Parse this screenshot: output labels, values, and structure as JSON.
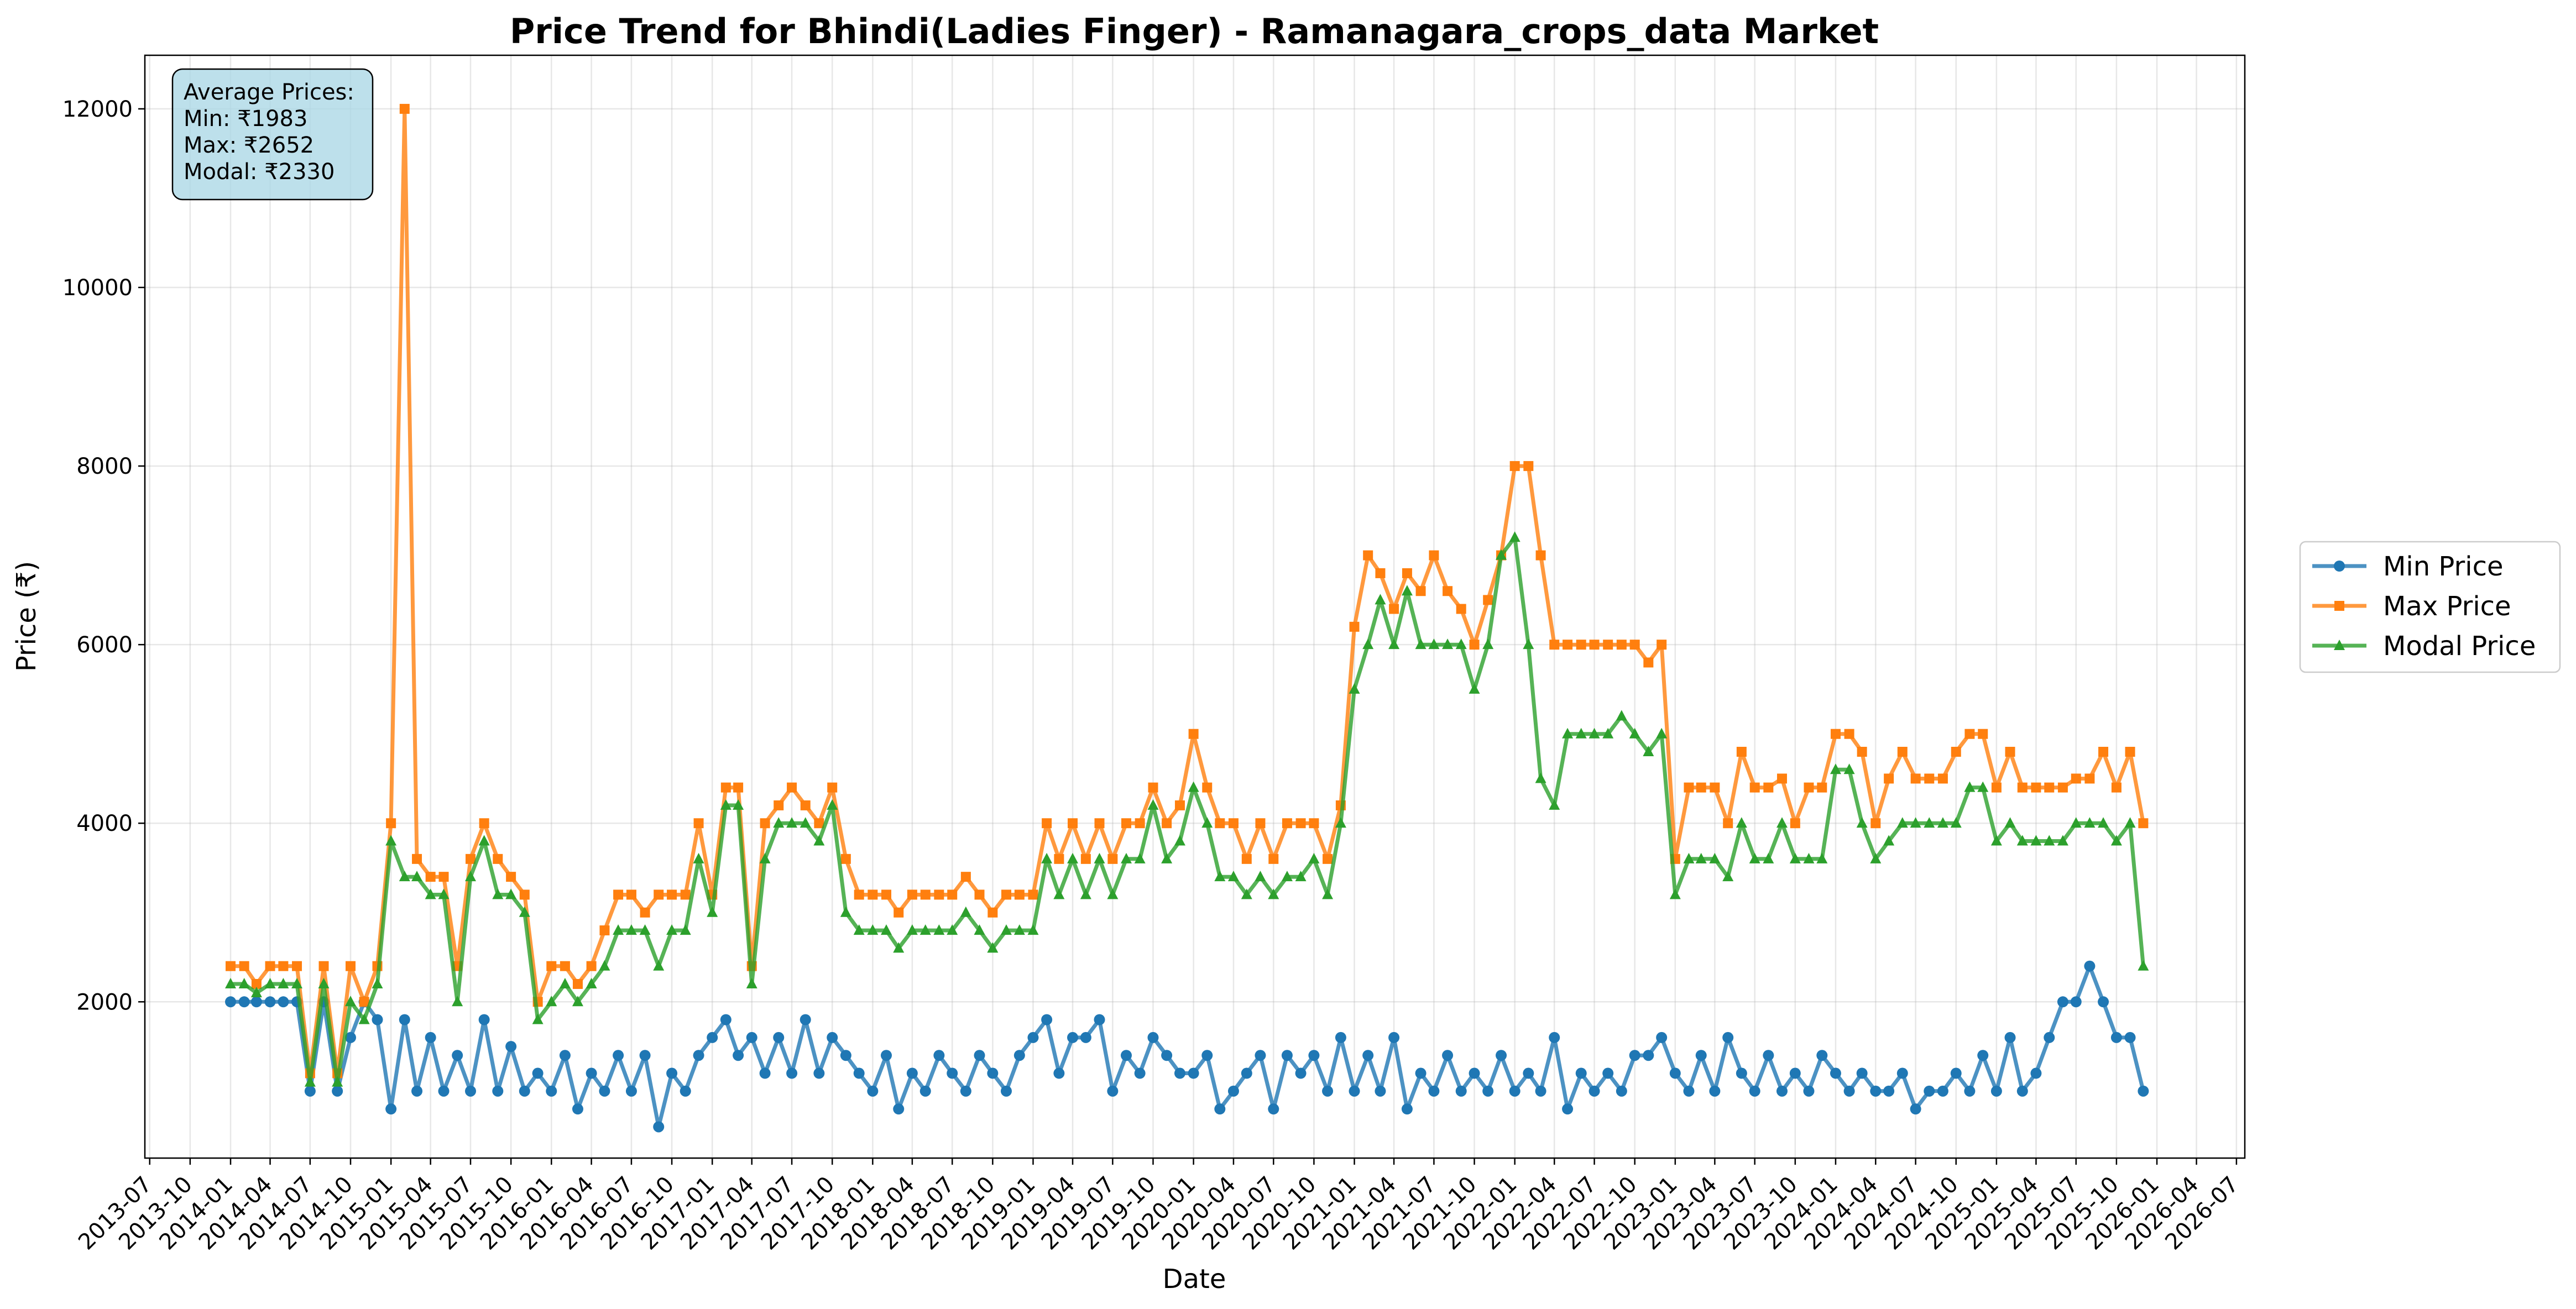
{
  "chart_data": {
    "type": "line",
    "title": "Price Trend for Bhindi(Ladies Finger) - Ramanagara_crops_data Market",
    "xlabel": "Date",
    "ylabel": "Price (₹)",
    "xlim": [
      "2013-06-20",
      "2026-07-20"
    ],
    "ylim": [
      250,
      12600
    ],
    "grid": true,
    "legend_position": "right-outside",
    "x_ticks": [
      "2013-07",
      "2013-10",
      "2014-01",
      "2014-04",
      "2014-07",
      "2014-10",
      "2015-01",
      "2015-04",
      "2015-07",
      "2015-10",
      "2016-01",
      "2016-04",
      "2016-07",
      "2016-10",
      "2017-01",
      "2017-04",
      "2017-07",
      "2017-10",
      "2018-01",
      "2018-04",
      "2018-07",
      "2018-10",
      "2019-01",
      "2019-04",
      "2019-07",
      "2019-10",
      "2020-01",
      "2020-04",
      "2020-07",
      "2020-10",
      "2021-01",
      "2021-04",
      "2021-07",
      "2021-10",
      "2022-01",
      "2022-04",
      "2022-07",
      "2022-10",
      "2023-01",
      "2023-04",
      "2023-07",
      "2023-10",
      "2024-01",
      "2024-04",
      "2024-07",
      "2024-10",
      "2025-01",
      "2025-04",
      "2025-07",
      "2025-10",
      "2026-01",
      "2026-04",
      "2026-07"
    ],
    "y_ticks": [
      2000,
      4000,
      6000,
      8000,
      10000,
      12000
    ],
    "stats_box": {
      "heading": "Average Prices:",
      "lines": [
        "Min: ₹1983",
        "Max: ₹2652",
        "Modal: ₹2330"
      ]
    },
    "series": [
      {
        "name": "Min Price",
        "color": "#1f77b4",
        "marker": "circle",
        "x": [
          "2014-01-01",
          "2014-02-01",
          "2014-03-01",
          "2014-04-01",
          "2014-05-01",
          "2014-06-01",
          "2014-07-01",
          "2014-08-01",
          "2014-09-01",
          "2014-10-01",
          "2014-11-01",
          "2014-12-01",
          "2015-01-01",
          "2015-02-01",
          "2015-03-01",
          "2015-04-01",
          "2015-05-01",
          "2015-06-01",
          "2015-07-01",
          "2015-08-01",
          "2015-09-01",
          "2015-10-01",
          "2015-11-01",
          "2015-12-01",
          "2016-01-01",
          "2016-02-01",
          "2016-03-01",
          "2016-04-01",
          "2016-05-01",
          "2016-06-01",
          "2016-07-01",
          "2016-08-01",
          "2016-09-01",
          "2016-10-01",
          "2016-11-01",
          "2016-12-01",
          "2017-01-01",
          "2017-02-01",
          "2017-03-01",
          "2017-04-01",
          "2017-05-01",
          "2017-06-01",
          "2017-07-01",
          "2017-08-01",
          "2017-09-01",
          "2017-10-01",
          "2017-11-01",
          "2017-12-01",
          "2018-01-01",
          "2018-02-01",
          "2018-03-01",
          "2018-04-01",
          "2018-05-01",
          "2018-06-01",
          "2018-07-01",
          "2018-08-01",
          "2018-09-01",
          "2018-10-01",
          "2018-11-01",
          "2018-12-01",
          "2019-01-01",
          "2019-02-01",
          "2019-03-01",
          "2019-04-01",
          "2019-05-01",
          "2019-06-01",
          "2019-07-01",
          "2019-08-01",
          "2019-09-01",
          "2019-10-01",
          "2019-11-01",
          "2019-12-01",
          "2020-01-01",
          "2020-02-01",
          "2020-03-01",
          "2020-04-01",
          "2020-05-01",
          "2020-06-01",
          "2020-07-01",
          "2020-08-01",
          "2020-09-01",
          "2020-10-01",
          "2020-11-01",
          "2020-12-01",
          "2021-01-01",
          "2021-02-01",
          "2021-03-01",
          "2021-04-01",
          "2021-05-01",
          "2021-06-01",
          "2021-07-01",
          "2021-08-01",
          "2021-09-01",
          "2021-10-01",
          "2021-11-01",
          "2021-12-01",
          "2022-01-01",
          "2022-02-01",
          "2022-03-01",
          "2022-04-01",
          "2022-05-01",
          "2022-06-01",
          "2022-07-01",
          "2022-08-01",
          "2022-09-01",
          "2022-10-01",
          "2022-11-01",
          "2022-12-01",
          "2023-01-01",
          "2023-02-01",
          "2023-03-01",
          "2023-04-01",
          "2023-05-01",
          "2023-06-01",
          "2023-07-01",
          "2023-08-01",
          "2023-09-01",
          "2023-10-01",
          "2023-11-01",
          "2023-12-01",
          "2024-01-01",
          "2024-02-01",
          "2024-03-01",
          "2024-04-01",
          "2024-05-01",
          "2024-06-01",
          "2024-07-01",
          "2024-08-01",
          "2024-09-01",
          "2024-10-01",
          "2024-11-01",
          "2024-12-01",
          "2025-01-01",
          "2025-02-01",
          "2025-03-01",
          "2025-04-01",
          "2025-05-01",
          "2025-06-01",
          "2025-07-01",
          "2025-08-01",
          "2025-09-01",
          "2025-10-01",
          "2025-11-01",
          "2025-12-01"
        ],
        "values": [
          2000,
          2000,
          2000,
          2000,
          2000,
          2000,
          1000,
          2000,
          1000,
          1600,
          2000,
          1800,
          800,
          1800,
          1000,
          1600,
          1000,
          1400,
          1000,
          1800,
          1000,
          1500,
          1000,
          1200,
          1000,
          1400,
          800,
          1200,
          1000,
          1400,
          1000,
          1400,
          600,
          1200,
          1000,
          1400,
          1600,
          1800,
          1400,
          1600,
          1200,
          1600,
          1200,
          1800,
          1200,
          1600,
          1400,
          1200,
          1000,
          1400,
          800,
          1200,
          1000,
          1400,
          1200,
          1000,
          1400,
          1200,
          1000,
          1400,
          1600,
          1800,
          1200,
          1600,
          1600,
          1800,
          1000,
          1400,
          1200,
          1600,
          1400,
          1200,
          1200,
          1400,
          800,
          1000,
          1200,
          1400,
          800,
          1400,
          1200,
          1400,
          1000,
          1600,
          1000,
          1400,
          1000,
          1600,
          800,
          1200,
          1000,
          1400,
          1000,
          1200,
          1000,
          1400,
          1000,
          1200,
          1000,
          1600,
          800,
          1200,
          1000,
          1200,
          1000,
          1400,
          1400,
          1600,
          1200,
          1000,
          1400,
          1000,
          1600,
          1200,
          1000,
          1400,
          1000,
          1200,
          1000,
          1400,
          1200,
          1000,
          1200,
          1000,
          1000,
          1200,
          800,
          1000,
          1000,
          1200,
          1000,
          1400,
          1000,
          1600,
          1000,
          1200,
          1600,
          2000,
          2000,
          2400,
          2000,
          1600,
          1600,
          1000
        ]
      },
      {
        "name": "Max Price",
        "color": "#ff7f0e",
        "marker": "square",
        "x": [
          "2014-01-01",
          "2014-02-01",
          "2014-03-01",
          "2014-04-01",
          "2014-05-01",
          "2014-06-01",
          "2014-07-01",
          "2014-08-01",
          "2014-09-01",
          "2014-10-01",
          "2014-11-01",
          "2014-12-01",
          "2015-01-01",
          "2015-02-01",
          "2015-03-01",
          "2015-04-01",
          "2015-05-01",
          "2015-06-01",
          "2015-07-01",
          "2015-08-01",
          "2015-09-01",
          "2015-10-01",
          "2015-11-01",
          "2015-12-01",
          "2016-01-01",
          "2016-02-01",
          "2016-03-01",
          "2016-04-01",
          "2016-05-01",
          "2016-06-01",
          "2016-07-01",
          "2016-08-01",
          "2016-09-01",
          "2016-10-01",
          "2016-11-01",
          "2016-12-01",
          "2017-01-01",
          "2017-02-01",
          "2017-03-01",
          "2017-04-01",
          "2017-05-01",
          "2017-06-01",
          "2017-07-01",
          "2017-08-01",
          "2017-09-01",
          "2017-10-01",
          "2017-11-01",
          "2017-12-01",
          "2018-01-01",
          "2018-02-01",
          "2018-03-01",
          "2018-04-01",
          "2018-05-01",
          "2018-06-01",
          "2018-07-01",
          "2018-08-01",
          "2018-09-01",
          "2018-10-01",
          "2018-11-01",
          "2018-12-01",
          "2019-01-01",
          "2019-02-01",
          "2019-03-01",
          "2019-04-01",
          "2019-05-01",
          "2019-06-01",
          "2019-07-01",
          "2019-08-01",
          "2019-09-01",
          "2019-10-01",
          "2019-11-01",
          "2019-12-01",
          "2020-01-01",
          "2020-02-01",
          "2020-03-01",
          "2020-04-01",
          "2020-05-01",
          "2020-06-01",
          "2020-07-01",
          "2020-08-01",
          "2020-09-01",
          "2020-10-01",
          "2020-11-01",
          "2020-12-01",
          "2021-01-01",
          "2021-02-01",
          "2021-03-01",
          "2021-04-01",
          "2021-05-01",
          "2021-06-01",
          "2021-07-01",
          "2021-08-01",
          "2021-09-01",
          "2021-10-01",
          "2021-11-01",
          "2021-12-01",
          "2022-01-01",
          "2022-02-01",
          "2022-03-01",
          "2022-04-01",
          "2022-05-01",
          "2022-06-01",
          "2022-07-01",
          "2022-08-01",
          "2022-09-01",
          "2022-10-01",
          "2022-11-01",
          "2022-12-01",
          "2023-01-01",
          "2023-02-01",
          "2023-03-01",
          "2023-04-01",
          "2023-05-01",
          "2023-06-01",
          "2023-07-01",
          "2023-08-01",
          "2023-09-01",
          "2023-10-01",
          "2023-11-01",
          "2023-12-01",
          "2024-01-01",
          "2024-02-01",
          "2024-03-01",
          "2024-04-01",
          "2024-05-01",
          "2024-06-01",
          "2024-07-01",
          "2024-08-01",
          "2024-09-01",
          "2024-10-01",
          "2024-11-01",
          "2024-12-01",
          "2025-01-01",
          "2025-02-01",
          "2025-03-01",
          "2025-04-01",
          "2025-05-01",
          "2025-06-01",
          "2025-07-01",
          "2025-08-01",
          "2025-09-01",
          "2025-10-01",
          "2025-11-01",
          "2025-12-01"
        ],
        "values": [
          2400,
          2400,
          2200,
          2400,
          2400,
          2400,
          1200,
          2400,
          1200,
          2400,
          2000,
          2400,
          4000,
          12000,
          3600,
          3400,
          3400,
          2400,
          3600,
          4000,
          3600,
          3400,
          3200,
          2000,
          2400,
          2400,
          2200,
          2400,
          2800,
          3200,
          3200,
          3000,
          3200,
          3200,
          3200,
          4000,
          3200,
          4400,
          4400,
          2400,
          4000,
          4200,
          4400,
          4200,
          4000,
          4400,
          3600,
          3200,
          3200,
          3200,
          3000,
          3200,
          3200,
          3200,
          3200,
          3400,
          3200,
          3000,
          3200,
          3200,
          3200,
          4000,
          3600,
          4000,
          3600,
          4000,
          3600,
          4000,
          4000,
          4400,
          4000,
          4200,
          5000,
          4400,
          4000,
          4000,
          3600,
          4000,
          3600,
          4000,
          4000,
          4000,
          3600,
          4200,
          6200,
          7000,
          6800,
          6400,
          6800,
          6600,
          7000,
          6600,
          6400,
          6000,
          6500,
          7000,
          8000,
          8000,
          7000,
          6000,
          6000,
          6000,
          6000,
          6000,
          6000,
          6000,
          5800,
          6000,
          3600,
          4400,
          4400,
          4400,
          4000,
          4800,
          4400,
          4400,
          4500,
          4000,
          4400,
          4400,
          5000,
          5000,
          4800,
          4000,
          4500,
          4800,
          4500,
          4500,
          4500,
          4800,
          5000,
          5000,
          4400,
          4800,
          4400,
          4400,
          4400,
          4400,
          4500,
          4500,
          4800,
          4400,
          4800,
          4000
        ]
      },
      {
        "name": "Modal Price",
        "color": "#2ca02c",
        "marker": "triangle",
        "x": [
          "2014-01-01",
          "2014-02-01",
          "2014-03-01",
          "2014-04-01",
          "2014-05-01",
          "2014-06-01",
          "2014-07-01",
          "2014-08-01",
          "2014-09-01",
          "2014-10-01",
          "2014-11-01",
          "2014-12-01",
          "2015-01-01",
          "2015-02-01",
          "2015-03-01",
          "2015-04-01",
          "2015-05-01",
          "2015-06-01",
          "2015-07-01",
          "2015-08-01",
          "2015-09-01",
          "2015-10-01",
          "2015-11-01",
          "2015-12-01",
          "2016-01-01",
          "2016-02-01",
          "2016-03-01",
          "2016-04-01",
          "2016-05-01",
          "2016-06-01",
          "2016-07-01",
          "2016-08-01",
          "2016-09-01",
          "2016-10-01",
          "2016-11-01",
          "2016-12-01",
          "2017-01-01",
          "2017-02-01",
          "2017-03-01",
          "2017-04-01",
          "2017-05-01",
          "2017-06-01",
          "2017-07-01",
          "2017-08-01",
          "2017-09-01",
          "2017-10-01",
          "2017-11-01",
          "2017-12-01",
          "2018-01-01",
          "2018-02-01",
          "2018-03-01",
          "2018-04-01",
          "2018-05-01",
          "2018-06-01",
          "2018-07-01",
          "2018-08-01",
          "2018-09-01",
          "2018-10-01",
          "2018-11-01",
          "2018-12-01",
          "2019-01-01",
          "2019-02-01",
          "2019-03-01",
          "2019-04-01",
          "2019-05-01",
          "2019-06-01",
          "2019-07-01",
          "2019-08-01",
          "2019-09-01",
          "2019-10-01",
          "2019-11-01",
          "2019-12-01",
          "2020-01-01",
          "2020-02-01",
          "2020-03-01",
          "2020-04-01",
          "2020-05-01",
          "2020-06-01",
          "2020-07-01",
          "2020-08-01",
          "2020-09-01",
          "2020-10-01",
          "2020-11-01",
          "2020-12-01",
          "2021-01-01",
          "2021-02-01",
          "2021-03-01",
          "2021-04-01",
          "2021-05-01",
          "2021-06-01",
          "2021-07-01",
          "2021-08-01",
          "2021-09-01",
          "2021-10-01",
          "2021-11-01",
          "2021-12-01",
          "2022-01-01",
          "2022-02-01",
          "2022-03-01",
          "2022-04-01",
          "2022-05-01",
          "2022-06-01",
          "2022-07-01",
          "2022-08-01",
          "2022-09-01",
          "2022-10-01",
          "2022-11-01",
          "2022-12-01",
          "2023-01-01",
          "2023-02-01",
          "2023-03-01",
          "2023-04-01",
          "2023-05-01",
          "2023-06-01",
          "2023-07-01",
          "2023-08-01",
          "2023-09-01",
          "2023-10-01",
          "2023-11-01",
          "2023-12-01",
          "2024-01-01",
          "2024-02-01",
          "2024-03-01",
          "2024-04-01",
          "2024-05-01",
          "2024-06-01",
          "2024-07-01",
          "2024-08-01",
          "2024-09-01",
          "2024-10-01",
          "2024-11-01",
          "2024-12-01",
          "2025-01-01",
          "2025-02-01",
          "2025-03-01",
          "2025-04-01",
          "2025-05-01",
          "2025-06-01",
          "2025-07-01",
          "2025-08-01",
          "2025-09-01",
          "2025-10-01",
          "2025-11-01",
          "2025-12-01"
        ],
        "values": [
          2200,
          2200,
          2100,
          2200,
          2200,
          2200,
          1100,
          2200,
          1100,
          2000,
          1800,
          2200,
          3800,
          3400,
          3400,
          3200,
          3200,
          2000,
          3400,
          3800,
          3200,
          3200,
          3000,
          1800,
          2000,
          2200,
          2000,
          2200,
          2400,
          2800,
          2800,
          2800,
          2400,
          2800,
          2800,
          3600,
          3000,
          4200,
          4200,
          2200,
          3600,
          4000,
          4000,
          4000,
          3800,
          4200,
          3000,
          2800,
          2800,
          2800,
          2600,
          2800,
          2800,
          2800,
          2800,
          3000,
          2800,
          2600,
          2800,
          2800,
          2800,
          3600,
          3200,
          3600,
          3200,
          3600,
          3200,
          3600,
          3600,
          4200,
          3600,
          3800,
          4400,
          4000,
          3400,
          3400,
          3200,
          3400,
          3200,
          3400,
          3400,
          3600,
          3200,
          4000,
          5500,
          6000,
          6500,
          6000,
          6600,
          6000,
          6000,
          6000,
          6000,
          5500,
          6000,
          7000,
          7200,
          6000,
          4500,
          4200,
          5000,
          5000,
          5000,
          5000,
          5200,
          5000,
          4800,
          5000,
          3200,
          3600,
          3600,
          3600,
          3400,
          4000,
          3600,
          3600,
          4000,
          3600,
          3600,
          3600,
          4600,
          4600,
          4000,
          3600,
          3800,
          4000,
          4000,
          4000,
          4000,
          4000,
          4400,
          4400,
          3800,
          4000,
          3800,
          3800,
          3800,
          3800,
          4000,
          4000,
          4000,
          3800,
          4000,
          2400
        ]
      }
    ]
  }
}
